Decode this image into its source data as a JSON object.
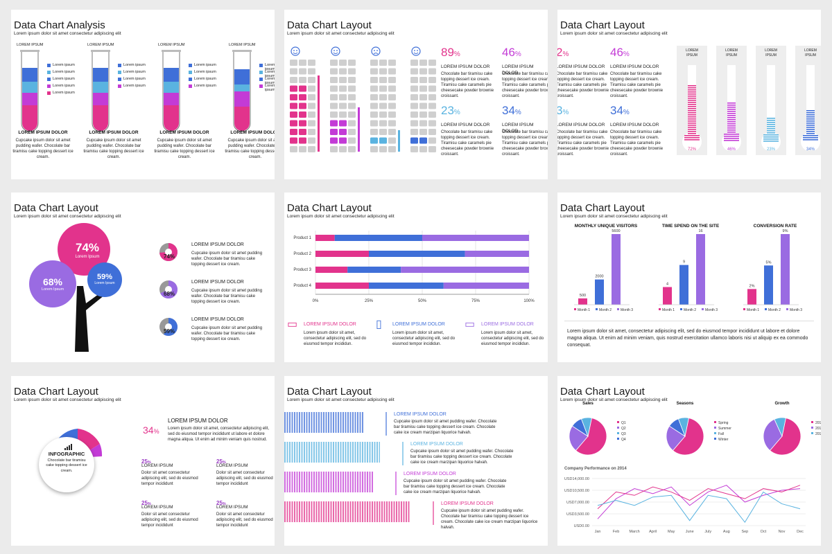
{
  "colors": {
    "pink": "#e2338c",
    "blue": "#3f6fd8",
    "purple": "#9a6be2",
    "light_blue": "#5ab3e0",
    "magenta": "#c33bd6",
    "grey": "#cfcfcf"
  },
  "lorem_sub": "Lorem ipsum dolor sit amet consectetur adipiscing elit",
  "s1": {
    "title": "Data Chart Analysis",
    "tubes": [
      {
        "label": "LOREM IPSUM",
        "legend": [
          "Lorem ipsum",
          "Lorem ipsum",
          "Lorem ipsum",
          "Lorem ipsum",
          "Lorem ipsum"
        ],
        "heading": "LOREM IPSUM DOLOR",
        "text": "Cupcake ipsum dolor sit amet pudding wafer. Chocolate bar tiramisu cake topping dessert ice cream."
      },
      {
        "label": "LOREM IPSUM",
        "legend": [
          "Lorem ipsum",
          "Lorem ipsum",
          "Lorem ipsum",
          "Lorem ipsum"
        ],
        "heading": "LOREM IPSUM DOLOR",
        "text": "Cupcake ipsum dolor sit amet pudding wafer. Chocolate bar tiramisu cake topping dessert ice cream."
      },
      {
        "label": "LOREM IPSUM",
        "legend": [
          "Lorem ipsum",
          "Lorem ipsum",
          "Lorem ipsum",
          "Lorem ipsum"
        ],
        "heading": "LOREM IPSUM DOLOR",
        "text": "Cupcake ipsum dolor sit amet pudding wafer. Chocolate bar tiramisu cake topping dessert ice cream."
      },
      {
        "label": "LOREM IPSUM",
        "legend": [
          "Lorem ipsum",
          "Lorem ipsum",
          "Lorem ipsum",
          "Lorem ipsum"
        ],
        "heading": "LOREM IPSUM DOLOR",
        "text": "Cupcake ipsum dolor sit amet pudding wafer. Chocolate bar tiramisu cake topping dessert ice cream."
      }
    ]
  },
  "s2": {
    "title": "Data Chart Layout",
    "stats": [
      {
        "value": "89",
        "unit": "%",
        "heading": "LOREM IPSUM DOLOR",
        "text": "Chocolate bar tiramisu cake topping dessert ice cream. Tiramisu cake caramels pie cheesecake powder brownie croissant."
      },
      {
        "value": "46",
        "unit": "%",
        "heading": "LOREM IPSUM DOLOR",
        "text": "Chocolate bar tiramisu cake topping dessert ice cream. Tiramisu cake caramels pie cheesecake powder brownie croissant."
      },
      {
        "value": "23",
        "unit": "%",
        "heading": "LOREM IPSUM DOLOR",
        "text": "Chocolate bar tiramisu cake topping dessert ice cream. Tiramisu cake caramels pie cheesecake powder brownie croissant."
      },
      {
        "value": "34",
        "unit": "%",
        "heading": "LOREM IPSUM DOLOR",
        "text": "Chocolate bar tiramisu cake topping dessert ice cream. Tiramisu cake caramels pie cheesecake powder brownie croissant."
      }
    ],
    "icons": [
      "happy-face-icon",
      "happy-face-icon",
      "sad-face-icon",
      "happy-face-icon"
    ]
  },
  "s3": {
    "title": "Data Chart Layout",
    "stats": [
      {
        "value": "2",
        "unit": "%",
        "heading": "LOREM IPSUM DOLOR",
        "text": "Chocolate bar tiramisu cake topping dessert ice cream. Tiramisu cake caramels pie cheesecake powder brownie croissant."
      },
      {
        "value": "46",
        "unit": "%",
        "heading": "LOREM IPSUM DOLOR",
        "text": "Chocolate bar tiramisu cake topping dessert ice cream. Tiramisu cake caramels pie cheesecake powder brownie croissant."
      },
      {
        "value": "3",
        "unit": "%",
        "heading": "LOREM IPSUM DOLOR",
        "text": "Chocolate bar tiramisu cake topping dessert ice cream. Tiramisu cake caramels pie cheesecake powder brownie croissant."
      },
      {
        "value": "34",
        "unit": "%",
        "heading": "LOREM IPSUM DOLOR",
        "text": "Chocolate bar tiramisu cake topping dessert ice cream. Tiramisu cake caramels pie cheesecake powder brownie croissant."
      }
    ],
    "thermos": [
      {
        "label": "LOREM IPSUM",
        "value": "72%",
        "fraction": 0.72
      },
      {
        "label": "LOREM IPSUM",
        "value": "46%",
        "fraction": 0.46
      },
      {
        "label": "LOREM IPSUM",
        "value": "23%",
        "fraction": 0.23
      },
      {
        "label": "LOREM IPSUM",
        "value": "34%",
        "fraction": 0.34
      }
    ]
  },
  "s4": {
    "title": "Data Chart Layout",
    "circles": [
      {
        "value": "74%",
        "label": "Lorem Ipsum"
      },
      {
        "value": "68%",
        "label": "Lorem Ipsum"
      },
      {
        "value": "59%",
        "label": "Lorem Ipsum"
      }
    ],
    "items": [
      {
        "value": "74%",
        "fraction": 0.74,
        "heading": "LOREM IPSUM DOLOR",
        "text": "Cupcake ipsum dolor sit amet pudding wafer. Chocolate bar tiramisu cake topping dessert ice cream."
      },
      {
        "value": "68%",
        "fraction": 0.68,
        "heading": "LOREM IPSUM DOLOR",
        "text": "Cupcake ipsum dolor sit amet pudding wafer. Chocolate bar tiramisu cake topping dessert ice cream."
      },
      {
        "value": "59%",
        "fraction": 0.59,
        "heading": "LOREM IPSUM DOLOR",
        "text": "Cupcake ipsum dolor sit amet pudding wafer. Chocolate bar tiramisu cake topping dessert ice cream."
      }
    ]
  },
  "s5": {
    "title": "Data Chart Layout",
    "features": [
      {
        "icon": "desktop-icon",
        "heading": "LOREM IPSUM DOLOR",
        "text": "Lorem ipsum dolor sit amet, consectetur adipiscing elit, sed do eiusmod tempor incididun."
      },
      {
        "icon": "mobile-icon",
        "heading": "LOREM IPSUM DOLOR",
        "text": "Lorem ipsum dolor sit amet, consectetur adipiscing elit, sed do eiusmod tempor incididun."
      },
      {
        "icon": "laptop-icon",
        "heading": "LOREM IPSUM DOLOR",
        "text": "Lorem ipsum dolor sit amet, consectetur adipiscing elit, sed do eiusmod tempor incididun."
      }
    ]
  },
  "s6": {
    "title": "Data Chart Layout",
    "charts": [
      {
        "title": "MONTHLY UNIQUE VISITORS",
        "labels": [
          "500",
          "2000",
          "5600"
        ]
      },
      {
        "title": "TIME SPEND ON THE SITE",
        "labels": [
          "4",
          "9",
          "16"
        ]
      },
      {
        "title": "CONVERSION RATE",
        "labels": [
          "2%",
          "5%",
          "9%"
        ]
      }
    ],
    "legend": [
      "Month 1",
      "Month 2",
      "Month 3"
    ],
    "text": "Lorem ipsum dolor sit amet, consectetur adipiscing elit, sed do eiusmod tempor incididunt ut labore et dolore magna aliqua. Ut enim ad minim veniam, quis nostrud exercitation ullamco laboris nisi ut aliquip ex ea commodo consequat."
  },
  "s7": {
    "title": "Data Chart Layout",
    "center_title": "INFOGRAPHIC",
    "center_text": "Chocolate bar tiramisu cake topping dessert ice cream.",
    "big": {
      "value": "34",
      "unit": "%",
      "heading": "LOREM IPSUM DOLOR",
      "text": "Lorem ipsum dolor sit amet, consectetur adipiscing elit, sed do eiusmod tempor incididunt ut labore et dolore magna aliqua. Ut enim ad minim veniam quis nostrud."
    },
    "items": [
      {
        "value": "25",
        "unit": "%",
        "heading": "LOREM IPSUM",
        "text": "Dolor sit amet consectetur adipiscing elit, sed do eiusmod tempor incididunt"
      },
      {
        "value": "25",
        "unit": "%",
        "heading": "LOREM IPSUM",
        "text": "Dolor sit amet consectetur adipiscing elit, sed do eiusmod tempor incididunt"
      },
      {
        "value": "25",
        "unit": "%",
        "heading": "LOREM IPSUM",
        "text": "Dolor sit amet consectetur adipiscing elit, sed do eiusmod tempor incididunt"
      },
      {
        "value": "25",
        "unit": "%",
        "heading": "LOREM IPSUM",
        "text": "Dolor sit amet consectetur adipiscing elit, sed do eiusmod tempor incididunt"
      }
    ]
  },
  "s8": {
    "title": "Data Chart Layout",
    "rows": [
      {
        "heading": "LOREM IPSUM DOLOR",
        "text": "Cupcake ipsum dolor sit amet pudding wafer. Chocolate bar tiramisu cake topping dessert ice cream. Chocolate cake ice cream marzipan liquorice halvah."
      },
      {
        "heading": "LOREM IPSUM DOLOR",
        "text": "Cupcake ipsum dolor sit amet pudding wafer. Chocolate bar tiramisu cake topping dessert ice cream. Chocolate cake ice cream marzipan liquorice halvah."
      },
      {
        "heading": "LOREM IPSUM DOLOR",
        "text": "Cupcake ipsum dolor sit amet pudding wafer. Chocolate bar tiramisu cake topping dessert ice cream. Chocolate cake ice cream marzipan liquorice halvah."
      },
      {
        "heading": "LOREM IPSUM DOLOR",
        "text": "Cupcake ipsum dolor sit amet pudding wafer. Chocolate bar tiramisu cake topping dessert ice cream. Chocolate cake ice cream marzipan liquorice halvah."
      }
    ]
  },
  "s9": {
    "title": "Data Chart Layout",
    "pies": [
      {
        "title": "Sales",
        "legend": [
          "Q1",
          "Q2",
          "Q3",
          "Q4"
        ]
      },
      {
        "title": "Seasons",
        "legend": [
          "Spring",
          "Summer",
          "Fall",
          "Winter"
        ]
      },
      {
        "title": "Growth",
        "legend": [
          "201",
          "201",
          "201"
        ]
      }
    ],
    "line_title": "Company Performance on 2014"
  },
  "chart_data": [
    {
      "type": "bar",
      "orientation": "horizontal-stacked",
      "categories": [
        "Product 1",
        "Product 2",
        "Product 3",
        "Product 4"
      ],
      "series": [
        {
          "values": [
            9,
            25,
            15,
            25
          ]
        },
        {
          "values": [
            41,
            45,
            25,
            35
          ]
        },
        {
          "values": [
            50,
            30,
            60,
            40
          ]
        }
      ],
      "xticks": [
        "0%",
        "25%",
        "50%",
        "75%",
        "100%"
      ],
      "xlim": [
        0,
        100
      ]
    },
    {
      "type": "bar",
      "title": "MONTHLY UNIQUE VISITORS",
      "categories": [
        "Month 1",
        "Month 2",
        "Month 3"
      ],
      "values": [
        500,
        2000,
        5600
      ]
    },
    {
      "type": "bar",
      "title": "TIME SPEND ON THE SITE",
      "categories": [
        "Month 1",
        "Month 2",
        "Month 3"
      ],
      "values": [
        4,
        9,
        16
      ]
    },
    {
      "type": "bar",
      "title": "CONVERSION RATE",
      "categories": [
        "Month 1",
        "Month 2",
        "Month 3"
      ],
      "values": [
        2,
        5,
        9
      ]
    },
    {
      "type": "pie",
      "title": "Sales",
      "categories": [
        "Q1",
        "Q2",
        "Q3",
        "Q4"
      ],
      "values": [
        58,
        23,
        10,
        9
      ]
    },
    {
      "type": "pie",
      "title": "Seasons",
      "categories": [
        "Spring",
        "Summer",
        "Fall",
        "Winter"
      ],
      "values": [
        58,
        23,
        10,
        9
      ]
    },
    {
      "type": "pie",
      "title": "Growth",
      "categories": [
        "201",
        "201",
        "201"
      ],
      "values": [
        58,
        32,
        10
      ]
    },
    {
      "type": "line",
      "title": "Company Performance on 2014",
      "x": [
        "Jan",
        "Feb",
        "March",
        "April",
        "May",
        "June",
        "July",
        "Aug",
        "Sep",
        "Oct",
        "Nov",
        "Dec"
      ],
      "yticks": [
        "USD0.00",
        "USD3,500.00",
        "USD7,000.00",
        "USD10,500.00",
        "USD14,000.00"
      ],
      "ylim": [
        0,
        14000
      ],
      "series": [
        {
          "values": [
            2000,
            8000,
            11000,
            9500,
            11500,
            6000,
            10000,
            12000,
            7000,
            9000,
            10500,
            11000
          ]
        },
        {
          "values": [
            5000,
            10000,
            9000,
            11500,
            10000,
            7500,
            11000,
            9500,
            8000,
            11000,
            10000,
            12000
          ]
        },
        {
          "values": [
            6000,
            7500,
            6000,
            8500,
            9000,
            1500,
            9000,
            8000,
            1000,
            10000,
            6500,
            5000
          ]
        }
      ]
    }
  ]
}
